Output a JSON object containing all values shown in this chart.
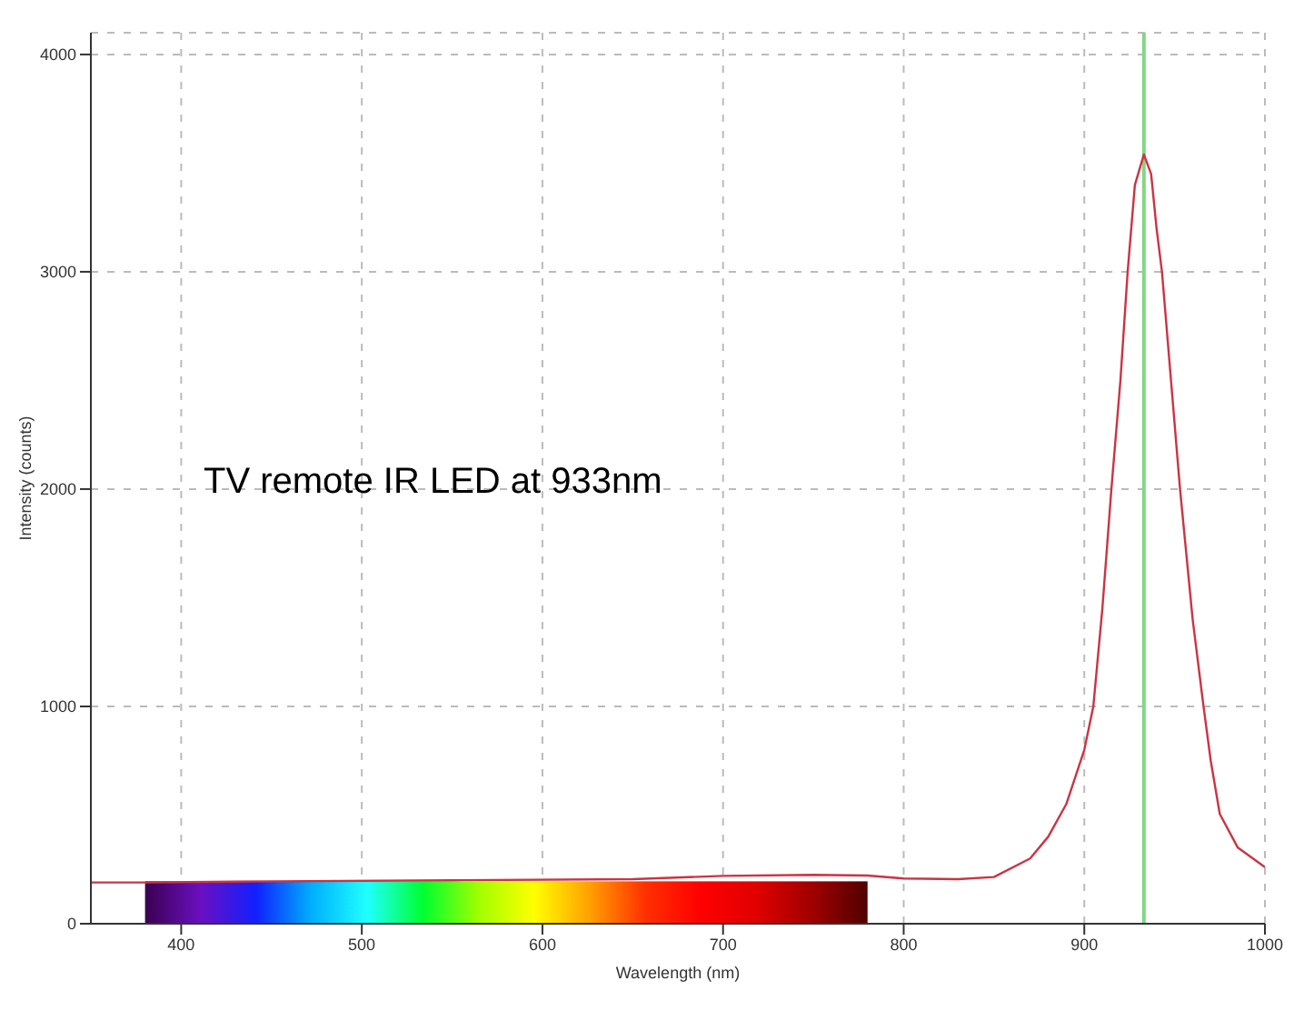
{
  "chart_data": {
    "type": "line",
    "xlabel": "Wavelength (nm)",
    "ylabel": "Intensity (counts)",
    "annotations": [
      "TV remote IR LED at 933nm"
    ],
    "xlim": [
      350,
      1000
    ],
    "xticks": [
      400,
      500,
      600,
      700,
      800,
      900,
      1000
    ],
    "ylim": [
      0,
      4100
    ],
    "yticks": [
      0,
      1000,
      2000,
      3000,
      4000
    ],
    "grid": true,
    "marker": "none",
    "line_style": "solid",
    "ref_lines": [
      {
        "axis": "x",
        "value": 933,
        "color": "#80d880"
      }
    ],
    "series": [
      {
        "color": "#cc3344",
        "x": [
          350,
          380,
          450,
          550,
          650,
          700,
          750,
          780,
          800,
          830,
          850,
          870,
          880,
          890,
          900,
          905,
          910,
          915,
          920,
          924,
          928,
          933,
          937,
          940,
          943,
          948,
          953,
          960,
          966,
          970,
          975,
          985,
          1000
        ],
        "values": [
          190,
          190,
          195,
          200,
          205,
          220,
          225,
          222,
          208,
          205,
          215,
          300,
          400,
          550,
          800,
          1000,
          1450,
          2000,
          2500,
          3000,
          3400,
          3540,
          3450,
          3200,
          3000,
          2500,
          2000,
          1400,
          1000,
          750,
          505,
          350,
          260
        ]
      }
    ]
  }
}
